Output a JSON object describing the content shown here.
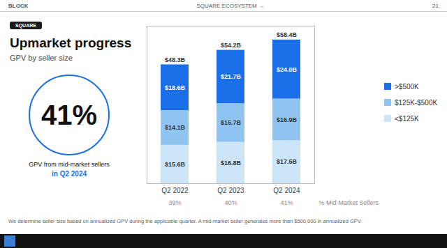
{
  "chart_data": {
    "type": "bar",
    "stacked": true,
    "title": "Upmarket progress",
    "subtitle": "GPV by seller size",
    "header_left": "BLOCK",
    "header_center": "SQUARE ECOSYSTEM  →",
    "header_right": "21",
    "badge": "SQUARE",
    "categories": [
      "Q2 2022",
      "Q2 2023",
      "Q2 2024"
    ],
    "series": [
      {
        "name": "<$125K",
        "color": "#cce5f8",
        "values": [
          15.6,
          16.8,
          17.5
        ],
        "value_labels": [
          "$15.6B",
          "$16.8B",
          "$17.5B"
        ]
      },
      {
        "name": "$125K-$500K",
        "color": "#90c4f0",
        "values": [
          14.1,
          15.7,
          16.9
        ],
        "value_labels": [
          "$14.1B",
          "$15.7B",
          "$16.9B"
        ]
      },
      {
        "name": ">$500K",
        "color": "#1a6fe8",
        "values": [
          18.6,
          21.7,
          24.0
        ],
        "value_labels": [
          "$18.6B",
          "$21.7B",
          "$24.0B"
        ]
      }
    ],
    "totals": [
      48.3,
      54.2,
      58.4
    ],
    "total_labels": [
      "$48.3B",
      "$54.2B",
      "$58.4B"
    ],
    "pct_row": {
      "label": "% Mid-Market Sellers",
      "values": [
        39,
        40,
        41
      ],
      "value_labels": [
        "39%",
        "40%",
        "41%"
      ]
    },
    "callout": {
      "value": 41,
      "label": "41%",
      "color": "#1a6fe8",
      "caption": [
        "GPV from mid-market sellers",
        "in Q2 2024"
      ]
    },
    "footnote": "We determine seller size based on annualized GPV during the applicable quarter. A mid-market seller generates more than $500,000 in annualized GPV.",
    "ylim": [
      0,
      64
    ],
    "tick_labels": "x",
    "data_labels": true,
    "grid": false,
    "legend": "right"
  }
}
